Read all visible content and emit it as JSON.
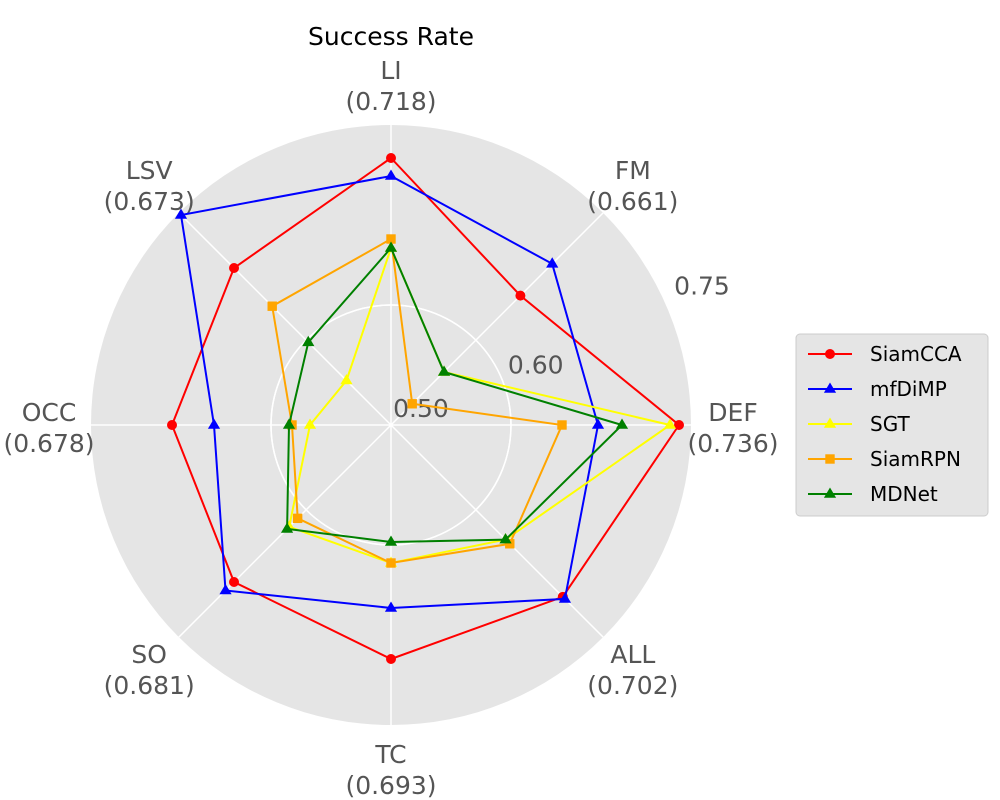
{
  "chart_data": {
    "type": "radar",
    "title": "Success Rate",
    "axes": [
      {
        "name": "LI",
        "max_label": "(0.718)"
      },
      {
        "name": "FM",
        "max_label": "(0.661)"
      },
      {
        "name": "DEF",
        "max_label": "(0.736)"
      },
      {
        "name": "ALL",
        "max_label": "(0.702)"
      },
      {
        "name": "TC",
        "max_label": "(0.693)"
      },
      {
        "name": "SO",
        "max_label": "(0.681)"
      },
      {
        "name": "OCC",
        "max_label": "(0.678)"
      },
      {
        "name": "LSV",
        "max_label": "(0.673)"
      }
    ],
    "ring_labels": [
      "0.50",
      "0.60",
      "0.75"
    ],
    "ring_fractions": [
      0.0,
      0.4,
      1.0
    ],
    "grid": true,
    "legend_position": "right",
    "series": [
      {
        "name": "SiamCCA",
        "color": "#ff0000",
        "marker": "circle",
        "values": [
          0.89,
          0.61,
          0.96,
          0.81,
          0.78,
          0.74,
          0.73,
          0.74
        ]
      },
      {
        "name": "mfDiMP",
        "color": "#0000ff",
        "marker": "triangle",
        "values": [
          0.83,
          0.76,
          0.69,
          0.82,
          0.61,
          0.78,
          0.59,
          0.99
        ]
      },
      {
        "name": "SGT",
        "color": "#ffff00",
        "marker": "triangle",
        "values": [
          0.59,
          0.25,
          0.93,
          0.54,
          0.46,
          0.48,
          0.27,
          0.21
        ]
      },
      {
        "name": "SiamRPN",
        "color": "#ffa500",
        "marker": "square",
        "values": [
          0.62,
          0.1,
          0.57,
          0.56,
          0.46,
          0.44,
          0.33,
          0.56
        ]
      },
      {
        "name": "MDNet",
        "color": "#008000",
        "marker": "triangle",
        "values": [
          0.59,
          0.25,
          0.77,
          0.54,
          0.39,
          0.49,
          0.34,
          0.39
        ]
      }
    ]
  }
}
